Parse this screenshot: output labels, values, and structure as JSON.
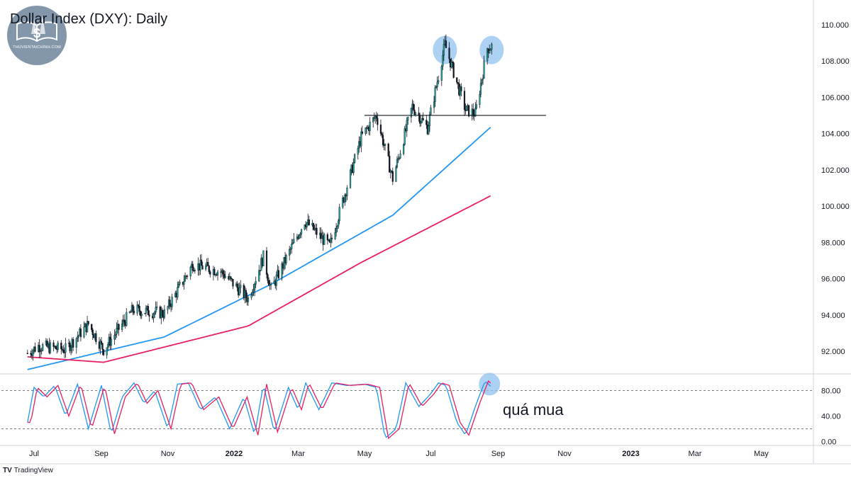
{
  "header": {
    "title": "Dollar Index (DXY): Daily"
  },
  "logo": {
    "text": "THUVIENTAICHINH.COM"
  },
  "annotation": {
    "overbought": "quá mua"
  },
  "footer": {
    "brand": "TradingView"
  },
  "colors": {
    "up_candle": "#26a69a",
    "down_candle": "#131722",
    "ma_fast": "#2196f3",
    "ma_slow": "#e91e63",
    "stoch_k": "#2196f3",
    "stoch_d": "#e91e63",
    "highlight": "#90c2ee"
  },
  "chart_data": [
    {
      "type": "candlestick",
      "title": "Dollar Index (DXY): Daily",
      "x_axis": {
        "tick_labels": [
          "Jul",
          "Sep",
          "Nov",
          "2022",
          "Mar",
          "May",
          "Jul",
          "Sep",
          "Nov",
          "2023",
          "Mar",
          "May"
        ],
        "range": [
          "2021-06",
          "2023-06"
        ]
      },
      "y_axis": {
        "tick_labels": [
          "92.000",
          "94.000",
          "96.000",
          "98.000",
          "100.000",
          "102.000",
          "104.000",
          "106.000",
          "108.000",
          "110.000"
        ],
        "range": [
          90.8,
          111.2
        ]
      },
      "price_path": [
        [
          "2021-06-25",
          91.9
        ],
        [
          "2021-07-05",
          92.3
        ],
        [
          "2021-07-30",
          92.1
        ],
        [
          "2021-08-20",
          93.5
        ],
        [
          "2021-09-03",
          92.1
        ],
        [
          "2021-09-30",
          94.3
        ],
        [
          "2021-10-29",
          94.1
        ],
        [
          "2021-11-24",
          96.8
        ],
        [
          "2021-12-20",
          96.4
        ],
        [
          "2022-01-14",
          94.9
        ],
        [
          "2022-01-28",
          97.2
        ],
        [
          "2022-02-04",
          95.4
        ],
        [
          "2022-03-07",
          99.2
        ],
        [
          "2022-03-30",
          97.8
        ],
        [
          "2022-04-28",
          103.8
        ],
        [
          "2022-05-12",
          105.0
        ],
        [
          "2022-05-27",
          101.5
        ],
        [
          "2022-06-14",
          105.5
        ],
        [
          "2022-06-28",
          104.3
        ],
        [
          "2022-07-14",
          108.9
        ],
        [
          "2022-08-02",
          105.3
        ],
        [
          "2022-08-11",
          105.1
        ],
        [
          "2022-08-22",
          108.7
        ],
        [
          "2022-08-26",
          108.8
        ]
      ],
      "moving_averages": [
        {
          "values": [
            [
              "2021-06-25",
              91.0
            ],
            [
              "2021-10-29",
              92.8
            ],
            [
              "2022-02-04",
              95.7
            ],
            [
              "2022-05-27",
              99.5
            ],
            [
              "2022-08-26",
              104.4
            ]
          ]
        },
        {
          "values": [
            [
              "2021-06-25",
              91.7
            ],
            [
              "2021-09-03",
              91.4
            ],
            [
              "2022-01-14",
              93.4
            ],
            [
              "2022-04-28",
              96.9
            ],
            [
              "2022-08-26",
              100.6
            ]
          ]
        }
      ],
      "horizontal_line": {
        "y": 105.0,
        "from": "2022-05-01",
        "to": "2022-10-15"
      },
      "highlights": [
        {
          "x": "2022-07-14",
          "y": 108.6
        },
        {
          "x": "2022-08-26",
          "y": 108.6
        }
      ]
    },
    {
      "type": "line",
      "title": "",
      "y_axis": {
        "tick_labels": [
          "0.00",
          "40.00",
          "80.00"
        ],
        "range": [
          -5,
          105
        ]
      },
      "levels": [
        80,
        20
      ],
      "series": [
        {
          "values": [
            [
              "2021-06-25",
              30
            ],
            [
              "2021-07-01",
              85
            ],
            [
              "2021-07-10",
              70
            ],
            [
              "2021-07-20",
              88
            ],
            [
              "2021-07-30",
              40
            ],
            [
              "2021-08-10",
              90
            ],
            [
              "2021-08-20",
              20
            ],
            [
              "2021-09-01",
              88
            ],
            [
              "2021-09-10",
              12
            ],
            [
              "2021-09-20",
              70
            ],
            [
              "2021-10-01",
              92
            ],
            [
              "2021-10-10",
              60
            ],
            [
              "2021-10-20",
              80
            ],
            [
              "2021-11-01",
              20
            ],
            [
              "2021-11-10",
              90
            ],
            [
              "2021-11-20",
              92
            ],
            [
              "2021-12-01",
              50
            ],
            [
              "2021-12-15",
              70
            ],
            [
              "2021-12-28",
              20
            ],
            [
              "2022-01-10",
              70
            ],
            [
              "2022-01-20",
              10
            ],
            [
              "2022-01-28",
              90
            ],
            [
              "2022-02-07",
              15
            ],
            [
              "2022-02-20",
              85
            ],
            [
              "2022-03-01",
              50
            ],
            [
              "2022-03-08",
              92
            ],
            [
              "2022-03-20",
              50
            ],
            [
              "2022-04-01",
              92
            ],
            [
              "2022-04-15",
              88
            ],
            [
              "2022-05-01",
              90
            ],
            [
              "2022-05-12",
              85
            ],
            [
              "2022-05-20",
              5
            ],
            [
              "2022-05-30",
              20
            ],
            [
              "2022-06-08",
              92
            ],
            [
              "2022-06-20",
              55
            ],
            [
              "2022-07-01",
              75
            ],
            [
              "2022-07-08",
              92
            ],
            [
              "2022-07-15",
              88
            ],
            [
              "2022-07-25",
              30
            ],
            [
              "2022-08-02",
              10
            ],
            [
              "2022-08-12",
              60
            ],
            [
              "2022-08-20",
              95
            ],
            [
              "2022-08-26",
              85
            ]
          ]
        }
      ],
      "highlights": [
        {
          "x": "2022-08-24",
          "y": 90
        }
      ]
    }
  ]
}
